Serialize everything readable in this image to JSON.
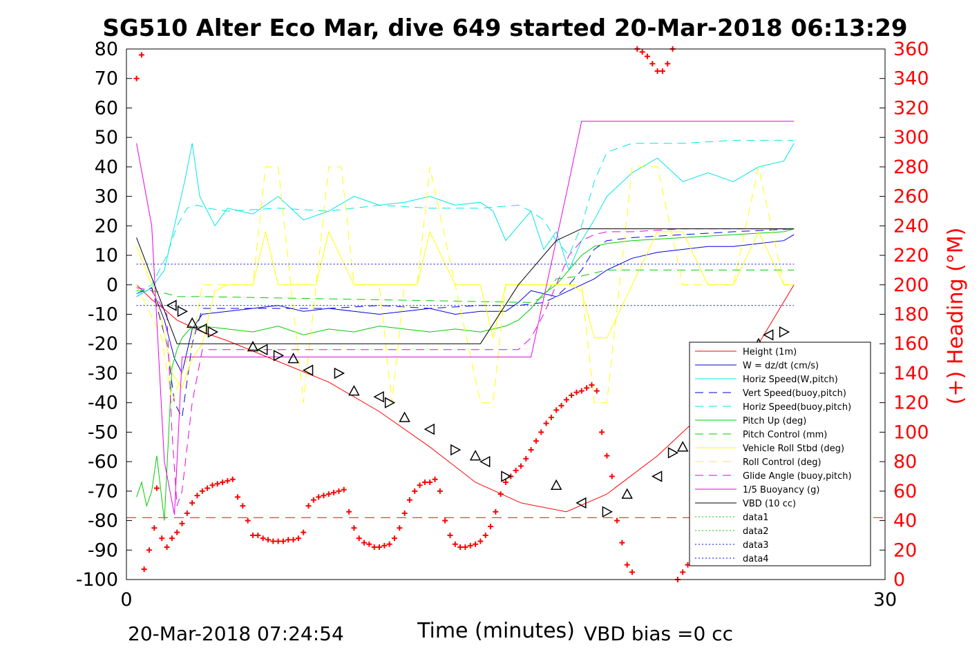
{
  "chart_data": {
    "type": "line",
    "title": "SG510 Alter Eco Mar, dive 649 started 20-Mar-2018 06:13:29",
    "xlabel": "Time (minutes)",
    "ylabel_right": "(+) Heading (°M)",
    "xlim": [
      0,
      30
    ],
    "ylim": [
      -100,
      80
    ],
    "ylim_right": [
      0,
      360
    ],
    "x_ticks": [
      "0",
      "30"
    ],
    "y_ticks": [
      "80",
      "70",
      "60",
      "50",
      "40",
      "30",
      "20",
      "10",
      "0",
      "-10",
      "-20",
      "-30",
      "-40",
      "-50",
      "-60",
      "-70",
      "-80",
      "-90",
      "-100"
    ],
    "y_ticks_right": [
      "360",
      "340",
      "320",
      "300",
      "280",
      "260",
      "240",
      "220",
      "200",
      "180",
      "160",
      "140",
      "120",
      "100",
      "80",
      "60",
      "40",
      "20",
      "0"
    ],
    "footer_left": "20-Mar-2018 07:24:54",
    "footer_right": "VBD bias =0 cc",
    "legend_position": "lower-right",
    "colors": {
      "red": "#ff0000",
      "blue": "#0000dd",
      "cyan": "#00e5e5",
      "green": "#00cc00",
      "yellow": "#ffff00",
      "magenta": "#e600e6",
      "black": "#000000"
    },
    "series": [
      {
        "name": "Height (1m)",
        "color": "#ff0000",
        "dash": "solid",
        "x": [
          0.4,
          1.0,
          1.6,
          2.0,
          3.0,
          4.0,
          6.0,
          8.0,
          10.0,
          12.0,
          13.8,
          15.6,
          17.4,
          19.0,
          21.0,
          23.0,
          25.0,
          26.4
        ],
        "y": [
          0,
          -5,
          -9,
          -12,
          -16,
          -19,
          -26,
          -33,
          -43,
          -55,
          -67,
          -74,
          -77,
          -71,
          -58,
          -42,
          -20,
          0
        ]
      },
      {
        "name": "W = dz/dt (cm/s)",
        "color": "#0000dd",
        "dash": "solid",
        "x": [
          0.4,
          1.0,
          1.5,
          1.9,
          2.2,
          2.6,
          3.0,
          4.0,
          5.0,
          6.0,
          7.0,
          8.0,
          9.0,
          10.0,
          11.0,
          12.0,
          13.0,
          14.0,
          15.0,
          15.5,
          16.0,
          16.5,
          17.0,
          17.5,
          18.0,
          18.5,
          19.0,
          20.0,
          21.0,
          22.0,
          23.0,
          24.0,
          25.0,
          26.0,
          26.4
        ],
        "y": [
          -4,
          -1,
          -12,
          -25,
          -30,
          -15,
          -10,
          -9,
          -8,
          -7,
          -9,
          -8,
          -9,
          -10,
          -9,
          -8,
          -10,
          -9,
          -9,
          -6,
          -2,
          -3,
          -4,
          -2,
          0,
          2,
          5,
          9,
          11,
          12,
          13,
          13,
          14,
          15,
          17
        ]
      },
      {
        "name": "Horiz Speed(W,pitch)",
        "color": "#00e5e5",
        "dash": "solid",
        "x": [
          0.4,
          1.0,
          1.5,
          1.9,
          2.3,
          2.6,
          2.9,
          3.5,
          4.0,
          5.0,
          6.0,
          7.0,
          8.0,
          9.0,
          10.0,
          11.0,
          12.0,
          13.0,
          14.0,
          14.5,
          15.0,
          15.5,
          16.0,
          16.5,
          17.0,
          17.5,
          18.0,
          18.5,
          19.0,
          20.0,
          21.0,
          22.0,
          23.0,
          24.0,
          25.0,
          26.0,
          26.4
        ],
        "y": [
          -4,
          -1,
          5,
          20,
          35,
          48,
          30,
          20,
          26,
          24,
          30,
          22,
          25,
          30,
          27,
          28,
          30,
          27,
          28,
          25,
          15,
          20,
          25,
          12,
          18,
          5,
          15,
          22,
          30,
          38,
          43,
          35,
          38,
          35,
          40,
          42,
          48
        ]
      },
      {
        "name": "Vert Speed(buoy,pitch)",
        "color": "#0000dd",
        "dash": "dash",
        "x": [
          0.4,
          1.0,
          1.6,
          1.9,
          2.2,
          2.6,
          3.0,
          4.0,
          6.0,
          8.0,
          10.0,
          12.0,
          14.0,
          15.5,
          16.5,
          17.0,
          17.5,
          18.0,
          18.5,
          19.0,
          20.0,
          22.0,
          24.0,
          26.4
        ],
        "y": [
          -3,
          -1,
          -20,
          -40,
          -45,
          -20,
          -8,
          -8,
          -8,
          -8,
          -7,
          -8,
          -7,
          -7,
          -6,
          -4,
          0,
          5,
          12,
          15,
          16,
          17,
          18,
          19
        ]
      },
      {
        "name": "Horiz Speed(buoy,pitch)",
        "color": "#00e5e5",
        "dash": "dash",
        "x": [
          0.4,
          1.0,
          1.6,
          2.0,
          2.4,
          2.8,
          3.2,
          4.0,
          6.0,
          8.0,
          10.0,
          12.0,
          14.0,
          15.5,
          16.0,
          16.5,
          17.0,
          17.5,
          18.0,
          18.5,
          19.0,
          20.0,
          22.0,
          24.0,
          26.4
        ],
        "y": [
          -3,
          0,
          10,
          20,
          26,
          27,
          26,
          25,
          26,
          25,
          27,
          26,
          26,
          27,
          25,
          22,
          15,
          10,
          20,
          35,
          45,
          48,
          48,
          49,
          49
        ]
      },
      {
        "name": "Pitch Up (deg)",
        "color": "#00cc00",
        "dash": "solid",
        "x": [
          0.4,
          0.6,
          0.8,
          1.0,
          1.2,
          1.5,
          1.8,
          2.0,
          2.2,
          2.5,
          3.0,
          4.0,
          5.0,
          6.0,
          7.0,
          8.0,
          9.0,
          10.0,
          11.0,
          12.0,
          13.0,
          14.0,
          15.0,
          15.5,
          16.0,
          16.5,
          17.0,
          17.5,
          18.0,
          18.5,
          19.0,
          20.0,
          22.0,
          24.0,
          26.0,
          26.4
        ],
        "y": [
          -72,
          -67,
          -75,
          -70,
          -58,
          -80,
          -28,
          -22,
          -18,
          -15,
          -14,
          -15,
          -16,
          -14,
          -17,
          -15,
          -16,
          -14,
          -15,
          -16,
          -15,
          -16,
          -14,
          -12,
          -8,
          -3,
          0,
          5,
          10,
          13,
          14,
          15,
          16,
          17,
          18,
          19
        ]
      },
      {
        "name": "Pitch Control (mm)",
        "color": "#00cc00",
        "dash": "dash",
        "x": [
          0.4,
          1.0,
          1.6,
          2.0,
          2.5,
          3.0,
          16.0,
          16.5,
          17.0,
          18.0,
          19.0,
          26.4
        ],
        "y": [
          -2,
          -2,
          -3,
          -4,
          -4,
          -4,
          -6,
          -4,
          2,
          3,
          5,
          5
        ]
      },
      {
        "name": "Vehicle Roll Stbd (deg)",
        "color": "#ffff00",
        "dash": "solid",
        "x": [
          0.4,
          1.0,
          1.4,
          1.8,
          2.2,
          2.6,
          3.0,
          3.5,
          4.0,
          4.5,
          5.0,
          5.5,
          6.0,
          6.5,
          7.0,
          7.5,
          8.0,
          9.0,
          10.0,
          10.5,
          11.0,
          11.5,
          12.0,
          13.0,
          14.0,
          14.5,
          15.0,
          16.0,
          17.0,
          17.5,
          18.0,
          18.5,
          19.0,
          20.0,
          21.0,
          22.0,
          23.0,
          24.0,
          25.0,
          26.0,
          26.4
        ],
        "y": [
          13,
          0,
          -12,
          -30,
          -35,
          -25,
          -20,
          -2,
          0,
          0,
          0,
          18,
          0,
          0,
          0,
          0,
          18,
          0,
          0,
          0,
          0,
          0,
          18,
          0,
          0,
          -18,
          0,
          0,
          0,
          0,
          -2,
          -18,
          -18,
          0,
          18,
          18,
          0,
          0,
          18,
          0,
          0
        ]
      },
      {
        "name": "Roll Control (deg)",
        "color": "#ffff00",
        "dash": "dash",
        "x": [
          0.4,
          1.4,
          1.8,
          2.2,
          2.6,
          3.0,
          3.5,
          4.0,
          5.0,
          5.5,
          6.0,
          6.5,
          7.0,
          7.5,
          8.0,
          8.5,
          9.0,
          10.0,
          10.5,
          11.0,
          11.5,
          12.0,
          13.0,
          14.0,
          14.5,
          15.0,
          16.0,
          17.0,
          17.5,
          18.0,
          18.5,
          19.0,
          20.0,
          21.0,
          22.0,
          24.0,
          25.0,
          26.0,
          26.4
        ],
        "y": [
          0,
          -18,
          -40,
          -30,
          -20,
          0,
          0,
          0,
          0,
          40,
          40,
          0,
          -40,
          0,
          40,
          40,
          0,
          0,
          -40,
          0,
          0,
          40,
          0,
          -40,
          -40,
          0,
          0,
          0,
          0,
          0,
          -40,
          -40,
          40,
          40,
          0,
          0,
          40,
          0,
          0
        ]
      },
      {
        "name": "Glide Angle (buoy,pitch)",
        "color": "#e600e6",
        "dash": "dash",
        "x": [
          0.4,
          1.0,
          1.6,
          1.8,
          2.0,
          2.2,
          2.6,
          3.0,
          4.0,
          6.0,
          8.0,
          10.0,
          12.0,
          14.0,
          15.5,
          16.0,
          16.5,
          17.0,
          17.5,
          18.0,
          18.5,
          19.0,
          20.0,
          22.0,
          24.0,
          26.4
        ],
        "y": [
          -1,
          -2,
          -10,
          -50,
          -75,
          -70,
          -40,
          -22,
          -22,
          -22,
          -22,
          -22,
          -22,
          -22,
          -22,
          -18,
          -10,
          0,
          10,
          15,
          17,
          18,
          18,
          19,
          19,
          19
        ]
      },
      {
        "name": "1/5 Buoyancy (g)",
        "color": "#e600e6",
        "dash": "solid",
        "x": [
          0.4,
          1.0,
          1.5,
          1.9,
          2.2,
          14.0,
          16.0,
          17.5,
          18.0,
          26.4
        ],
        "y": [
          48,
          20,
          -60,
          -78,
          -24.5,
          -24.5,
          -24.5,
          35,
          55.5,
          55.5
        ]
      },
      {
        "name": "VBD (10 cc)",
        "color": "#000000",
        "dash": "solid",
        "x": [
          0.4,
          2.0,
          3.0,
          14.0,
          15.5,
          17.0,
          18.0,
          26.4
        ],
        "y": [
          16,
          -20,
          -20,
          -20,
          0,
          15,
          19,
          19
        ]
      },
      {
        "name": "data1",
        "color": "#00cc00",
        "dash": "dot",
        "x": [],
        "y": []
      },
      {
        "name": "data2",
        "color": "#00cc00",
        "dash": "dot",
        "x": [],
        "y": []
      },
      {
        "name": "data3",
        "color": "#0000dd",
        "dash": "dot",
        "x": [
          0.4,
          26.4
        ],
        "y": [
          7,
          7
        ]
      },
      {
        "name": "data4",
        "color": "#0000dd",
        "dash": "dot",
        "x": [
          0.4,
          26.4
        ],
        "y": [
          -7,
          -7
        ]
      }
    ],
    "heading_series": {
      "name": "(+) Heading",
      "color": "#ff0000",
      "marker": "+",
      "x": [
        0.4,
        0.6,
        0.7,
        0.9,
        1.1,
        1.2,
        1.4,
        1.6,
        1.8,
        2.0,
        2.2,
        2.4,
        2.6,
        2.8,
        3.0,
        3.2,
        3.4,
        3.6,
        3.8,
        4.0,
        4.2,
        4.4,
        4.6,
        4.8,
        5.0,
        5.2,
        5.4,
        5.6,
        5.8,
        6.0,
        6.2,
        6.4,
        6.6,
        6.8,
        7.0,
        7.2,
        7.4,
        7.6,
        7.8,
        8.0,
        8.2,
        8.4,
        8.6,
        8.8,
        9.0,
        9.2,
        9.4,
        9.6,
        9.8,
        10.0,
        10.2,
        10.4,
        10.6,
        10.8,
        11.0,
        11.2,
        11.4,
        11.6,
        11.8,
        12.0,
        12.2,
        12.4,
        12.6,
        12.8,
        13.0,
        13.2,
        13.4,
        13.6,
        13.8,
        14.0,
        14.2,
        14.4,
        14.6,
        14.8,
        15.0,
        15.2,
        15.4,
        15.6,
        15.8,
        16.0,
        16.2,
        16.4,
        16.6,
        16.8,
        17.0,
        17.2,
        17.4,
        17.6,
        17.8,
        18.0,
        18.2,
        18.4,
        18.6,
        18.8,
        19.0,
        19.2,
        19.4,
        19.6,
        19.8,
        20.0,
        20.2,
        20.4,
        20.6,
        20.8,
        21.0,
        21.2,
        21.4,
        21.6,
        21.8,
        22.0,
        22.2,
        22.4,
        22.6,
        22.8,
        23.0,
        23.2,
        23.4,
        23.6,
        23.8,
        24.0,
        24.2,
        24.4,
        24.6,
        24.8,
        25.0
      ],
      "y": [
        340,
        356,
        7,
        20,
        35,
        62,
        28,
        22,
        28,
        32,
        38,
        45,
        52,
        57,
        60,
        62,
        64,
        65,
        66,
        67,
        68,
        56,
        50,
        40,
        30,
        30,
        28,
        27,
        26,
        26,
        26,
        27,
        27,
        28,
        32,
        50,
        54,
        56,
        57,
        58,
        59,
        60,
        61,
        46,
        35,
        28,
        25,
        24,
        22,
        22,
        23,
        24,
        28,
        35,
        45,
        54,
        60,
        64,
        66,
        66,
        68,
        60,
        40,
        30,
        24,
        22,
        22,
        23,
        24,
        26,
        30,
        36,
        46,
        58,
        66,
        70,
        74,
        77,
        82,
        88,
        94,
        100,
        106,
        110,
        115,
        118,
        122,
        125,
        127,
        128,
        130,
        132,
        128,
        100,
        84,
        70,
        40,
        25,
        10,
        5,
        360,
        358,
        355,
        350,
        345,
        345,
        350,
        360,
        0,
        5,
        10,
        20,
        30,
        45,
        55,
        60,
        58,
        55,
        52,
        50,
        48,
        46,
        44,
        42,
        40
      ]
    },
    "depth_markers": {
      "x": [
        1.8,
        2.2,
        2.6,
        3.0,
        3.4,
        5.0,
        5.4,
        6.0,
        6.6,
        7.2,
        8.4,
        9.0,
        10.0,
        10.4,
        11.0,
        12.0,
        13.0,
        13.8,
        14.2,
        15.0,
        17.0,
        18.0,
        19.0,
        19.8,
        21.0,
        21.6,
        22.0,
        23.0,
        23.4,
        25.0,
        25.4,
        26.0
      ],
      "y": [
        -7,
        -9,
        -13,
        -15,
        -16,
        -21,
        -22,
        -24,
        -25,
        -29,
        -30,
        -36,
        -38,
        -40,
        -45,
        -49,
        -56,
        -58,
        -60,
        -65,
        -68,
        -74,
        -77,
        -71,
        -65,
        -57,
        -55,
        -46,
        -44,
        -20,
        -17,
        -16
      ]
    },
    "ref_line": {
      "y": -79,
      "color": "#ff0000",
      "dash": "dash"
    }
  }
}
